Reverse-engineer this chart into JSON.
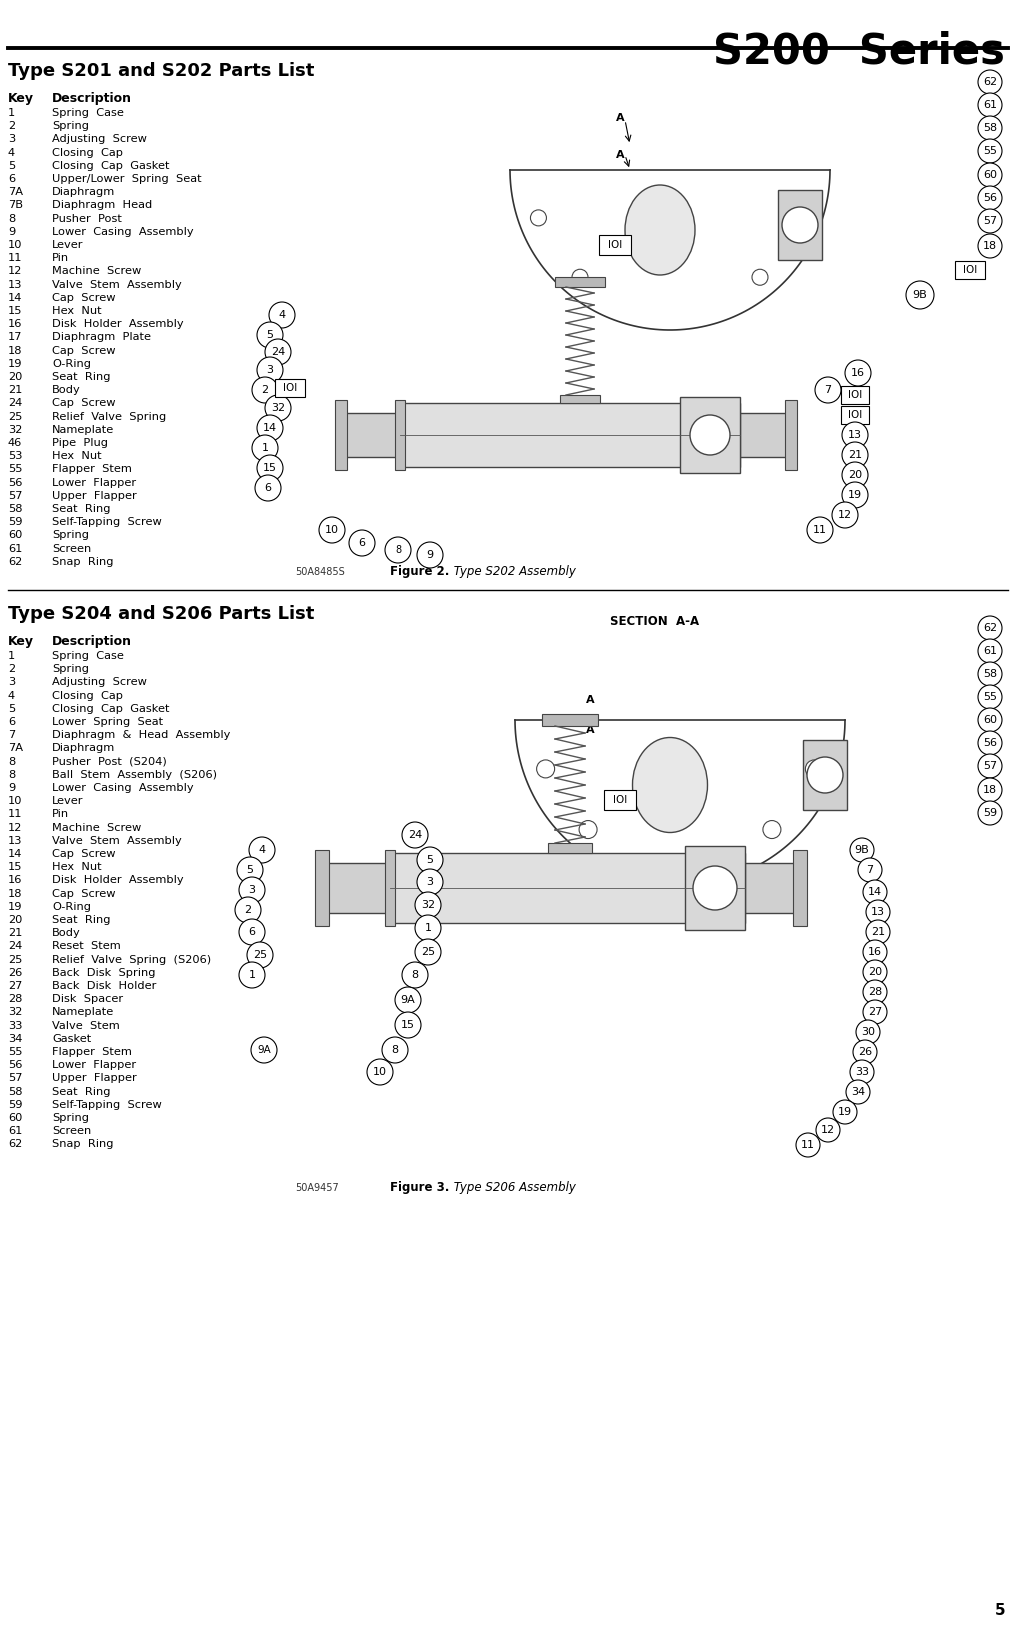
{
  "page_title": "S200  Series",
  "section1_title": "Type S201 and S202 Parts List",
  "section2_title": "Type S204 and S206 Parts List",
  "col_header_key": "Key",
  "col_header_desc": "Description",
  "parts_s201": [
    [
      "1",
      "Spring  Case"
    ],
    [
      "2",
      "Spring"
    ],
    [
      "3",
      "Adjusting  Screw"
    ],
    [
      "4",
      "Closing  Cap"
    ],
    [
      "5",
      "Closing  Cap  Gasket"
    ],
    [
      "6",
      "Upper/Lower  Spring  Seat"
    ],
    [
      "7A",
      "Diaphragm"
    ],
    [
      "7B",
      "Diaphragm  Head"
    ],
    [
      "8",
      "Pusher  Post"
    ],
    [
      "9",
      "Lower  Casing  Assembly"
    ],
    [
      "10",
      "Lever"
    ],
    [
      "11",
      "Pin"
    ],
    [
      "12",
      "Machine  Screw"
    ],
    [
      "13",
      "Valve  Stem  Assembly"
    ],
    [
      "14",
      "Cap  Screw"
    ],
    [
      "15",
      "Hex  Nut"
    ],
    [
      "16",
      "Disk  Holder  Assembly"
    ],
    [
      "17",
      "Diaphragm  Plate"
    ],
    [
      "18",
      "Cap  Screw"
    ],
    [
      "19",
      "O-Ring"
    ],
    [
      "20",
      "Seat  Ring"
    ],
    [
      "21",
      "Body"
    ],
    [
      "24",
      "Cap  Screw"
    ],
    [
      "25",
      "Relief  Valve  Spring"
    ],
    [
      "32",
      "Nameplate"
    ],
    [
      "46",
      "Pipe  Plug"
    ],
    [
      "53",
      "Hex  Nut"
    ],
    [
      "55",
      "Flapper  Stem"
    ],
    [
      "56",
      "Lower  Flapper"
    ],
    [
      "57",
      "Upper  Flapper"
    ],
    [
      "58",
      "Seat  Ring"
    ],
    [
      "59",
      "Self-Tapping  Screw"
    ],
    [
      "60",
      "Spring"
    ],
    [
      "61",
      "Screen"
    ],
    [
      "62",
      "Snap  Ring"
    ]
  ],
  "parts_s204": [
    [
      "1",
      "Spring  Case"
    ],
    [
      "2",
      "Spring"
    ],
    [
      "3",
      "Adjusting  Screw"
    ],
    [
      "4",
      "Closing  Cap"
    ],
    [
      "5",
      "Closing  Cap  Gasket"
    ],
    [
      "6",
      "Lower  Spring  Seat"
    ],
    [
      "7",
      "Diaphragm  &  Head  Assembly"
    ],
    [
      "7A",
      "Diaphragm"
    ],
    [
      "8",
      "Pusher  Post  (S204)"
    ],
    [
      "8",
      "Ball  Stem  Assembly  (S206)"
    ],
    [
      "9",
      "Lower  Casing  Assembly"
    ],
    [
      "10",
      "Lever"
    ],
    [
      "11",
      "Pin"
    ],
    [
      "12",
      "Machine  Screw"
    ],
    [
      "13",
      "Valve  Stem  Assembly"
    ],
    [
      "14",
      "Cap  Screw"
    ],
    [
      "15",
      "Hex  Nut"
    ],
    [
      "16",
      "Disk  Holder  Assembly"
    ],
    [
      "18",
      "Cap  Screw"
    ],
    [
      "19",
      "O-Ring"
    ],
    [
      "20",
      "Seat  Ring"
    ],
    [
      "21",
      "Body"
    ],
    [
      "24",
      "Reset  Stem"
    ],
    [
      "25",
      "Relief  Valve  Spring  (S206)"
    ],
    [
      "26",
      "Back  Disk  Spring"
    ],
    [
      "27",
      "Back  Disk  Holder"
    ],
    [
      "28",
      "Disk  Spacer"
    ],
    [
      "32",
      "Nameplate"
    ],
    [
      "33",
      "Valve  Stem"
    ],
    [
      "34",
      "Gasket"
    ],
    [
      "55",
      "Flapper  Stem"
    ],
    [
      "56",
      "Lower  Flapper"
    ],
    [
      "57",
      "Upper  Flapper"
    ],
    [
      "58",
      "Seat  Ring"
    ],
    [
      "59",
      "Self-Tapping  Screw"
    ],
    [
      "60",
      "Spring"
    ],
    [
      "61",
      "Screen"
    ],
    [
      "62",
      "Snap  Ring"
    ]
  ],
  "fig2_code": "50A8485S",
  "fig3_code": "50A9457",
  "fig2_label_bold": "Figure 2.",
  "fig2_label_italic": " Type S202 Assembly",
  "fig3_label_bold": "Figure 3.",
  "fig3_label_italic": " Type S206 Assembly",
  "page_number": "5",
  "bg_color": "#ffffff",
  "text_color": "#000000"
}
